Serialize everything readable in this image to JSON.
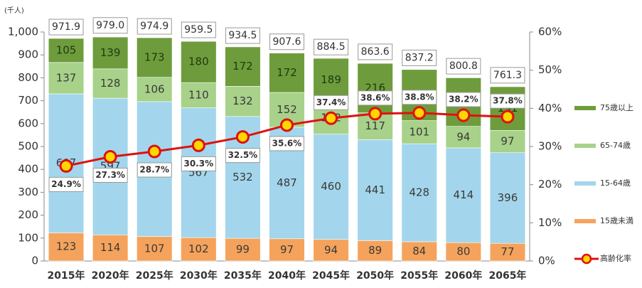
{
  "chart_data": {
    "type": "bar_line",
    "y_unit": "(千人)",
    "categories": [
      "2015年",
      "2020年",
      "2025年",
      "2030年",
      "2035年",
      "2040年",
      "2045年",
      "2050年",
      "2055年",
      "2060年",
      "2065年"
    ],
    "series": [
      {
        "name": "15歳未満",
        "color": "#f5a35c",
        "values": [
          123,
          114,
          107,
          102,
          99,
          97,
          94,
          89,
          84,
          80,
          77
        ]
      },
      {
        "name": "15-64歳",
        "color": "#a3d6ec",
        "values": [
          607,
          597,
          589,
          567,
          532,
          487,
          460,
          441,
          428,
          414,
          396
        ]
      },
      {
        "name": "65-74歳",
        "color": "#a8d18a",
        "values": [
          137,
          128,
          106,
          110,
          132,
          152,
          142,
          117,
          101,
          94,
          97
        ]
      },
      {
        "name": "75歳以上",
        "color": "#6e9c3c",
        "values": [
          105,
          139,
          173,
          180,
          172,
          172,
          189,
          216,
          223,
          212,
          191
        ]
      },
      {
        "name": "高齢化率",
        "type": "line",
        "axis": "y2",
        "color": "#e01010",
        "marker_fill": "#ffd700",
        "values": [
          24.9,
          27.3,
          28.7,
          30.3,
          32.5,
          35.6,
          37.4,
          38.6,
          38.8,
          38.2,
          37.8
        ],
        "value_labels": [
          "24.9%",
          "27.3%",
          "28.7%",
          "30.3%",
          "32.5%",
          "35.6%",
          "37.4%",
          "38.6%",
          "38.8%",
          "38.2%",
          "37.8%"
        ]
      }
    ],
    "totals": {
      "values": [
        971.9,
        979,
        974.9,
        959.5,
        934.5,
        907.6,
        884.5,
        863.6,
        837.2,
        800.8,
        761.3
      ],
      "value_labels": [
        "971.9",
        "979.0",
        "974.9",
        "959.5",
        "934.5",
        "907.6",
        "884.5",
        "863.6",
        "837.2",
        "800.8",
        "761.3"
      ]
    },
    "ylim": [
      0,
      1000
    ],
    "yticks": [
      0,
      100,
      200,
      300,
      400,
      500,
      600,
      700,
      800,
      900,
      {
        "value": 1000,
        "label": "1,000"
      }
    ],
    "y2lim": [
      0,
      60
    ],
    "y2ticks": [
      {
        "value": 0,
        "label": "0%"
      },
      {
        "value": 10,
        "label": "10%"
      },
      {
        "value": 20,
        "label": "20%"
      },
      {
        "value": 30,
        "label": "30%"
      },
      {
        "value": 40,
        "label": "40%"
      },
      {
        "value": 50,
        "label": "50%"
      },
      {
        "value": 60,
        "label": "60%"
      }
    ],
    "grid": false,
    "legend": "right"
  }
}
